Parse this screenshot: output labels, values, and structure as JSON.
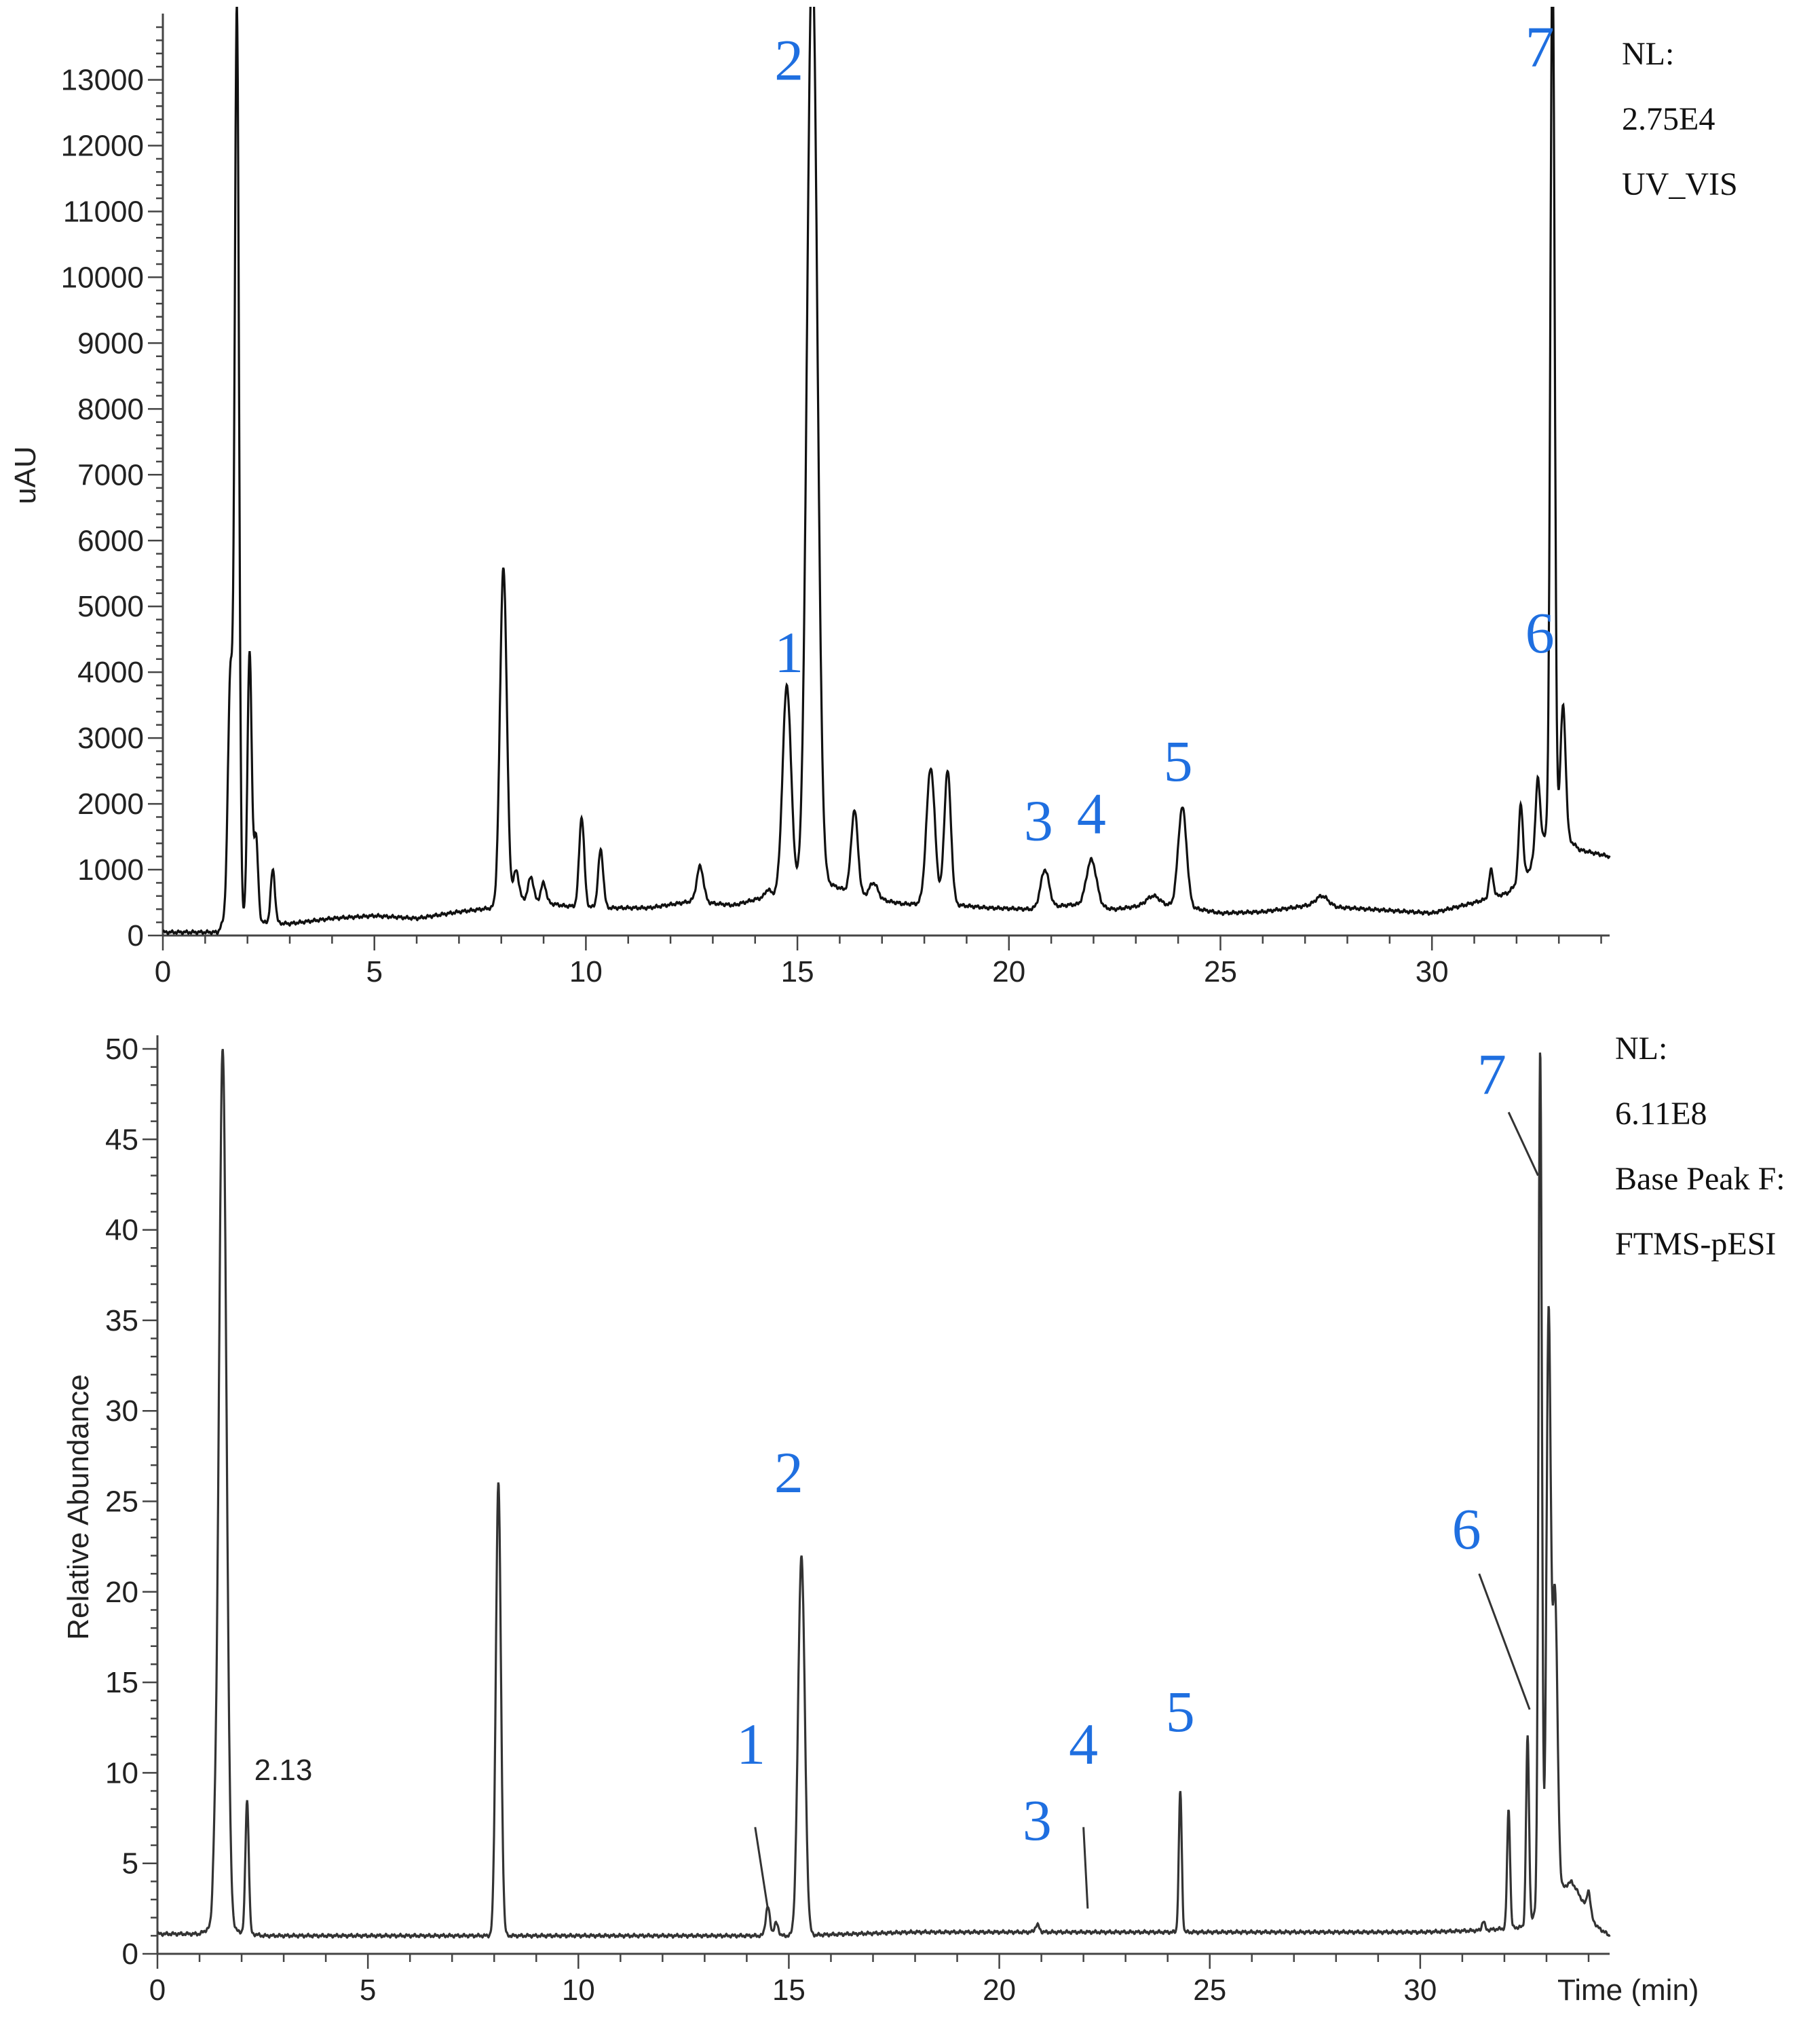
{
  "chart_data": [
    {
      "type": "line",
      "title": "",
      "xlabel": "",
      "ylabel": "uAU",
      "xlim": [
        0,
        34.2
      ],
      "ylim": [
        0,
        13800
      ],
      "xticks": [
        0,
        5,
        10,
        15,
        20,
        25,
        30
      ],
      "yticks": [
        0,
        1000,
        2000,
        3000,
        4000,
        5000,
        6000,
        7000,
        8000,
        9000,
        10000,
        11000,
        12000,
        13000
      ],
      "grid": false,
      "info_lines": [
        "NL:",
        "2.75E4",
        "UV_VIS"
      ],
      "baseline": [
        [
          0,
          50
        ],
        [
          1.3,
          50
        ],
        [
          1.5,
          300
        ],
        [
          2.3,
          200
        ],
        [
          3,
          180
        ],
        [
          4,
          260
        ],
        [
          5,
          300
        ],
        [
          6,
          260
        ],
        [
          7,
          360
        ],
        [
          7.8,
          420
        ],
        [
          8.5,
          560
        ],
        [
          9.5,
          450
        ],
        [
          10.5,
          420
        ],
        [
          11.5,
          420
        ],
        [
          12.5,
          520
        ],
        [
          13.5,
          460
        ],
        [
          14.3,
          600
        ],
        [
          15.6,
          820
        ],
        [
          16.5,
          600
        ],
        [
          17.5,
          480
        ],
        [
          18.5,
          480
        ],
        [
          19.5,
          420
        ],
        [
          20.5,
          400
        ],
        [
          21.5,
          470
        ],
        [
          22.5,
          400
        ],
        [
          23.5,
          480
        ],
        [
          24.5,
          400
        ],
        [
          25,
          340
        ],
        [
          26,
          360
        ],
        [
          27,
          450
        ],
        [
          28,
          420
        ],
        [
          29,
          380
        ],
        [
          30,
          340
        ],
        [
          31,
          500
        ],
        [
          31.8,
          650
        ],
        [
          32.3,
          1000
        ],
        [
          32.6,
          1500
        ],
        [
          33,
          1600
        ],
        [
          33.5,
          1300
        ],
        [
          34.2,
          1200
        ]
      ],
      "peaks": [
        {
          "x": 1.6,
          "y": 4000,
          "w": 0.06
        },
        {
          "x": 1.75,
          "y": 14000,
          "w": 0.05
        },
        {
          "x": 2.05,
          "y": 4300,
          "w": 0.05
        },
        {
          "x": 2.2,
          "y": 1500,
          "w": 0.05
        },
        {
          "x": 2.6,
          "y": 1000,
          "w": 0.05
        },
        {
          "x": 8.05,
          "y": 5600,
          "w": 0.08
        },
        {
          "x": 8.35,
          "y": 1000,
          "w": 0.06
        },
        {
          "x": 8.7,
          "y": 900,
          "w": 0.06
        },
        {
          "x": 9.0,
          "y": 800,
          "w": 0.06
        },
        {
          "x": 9.9,
          "y": 1800,
          "w": 0.06
        },
        {
          "x": 10.35,
          "y": 1300,
          "w": 0.06
        },
        {
          "x": 12.7,
          "y": 1050,
          "w": 0.08
        },
        {
          "x": 14.3,
          "y": 700,
          "w": 0.06
        },
        {
          "x": 14.75,
          "y": 3800,
          "w": 0.1
        },
        {
          "x": 15.35,
          "y": 15000,
          "w": 0.12
        },
        {
          "x": 16.35,
          "y": 1900,
          "w": 0.08
        },
        {
          "x": 16.8,
          "y": 800,
          "w": 0.1
        },
        {
          "x": 18.15,
          "y": 2550,
          "w": 0.1
        },
        {
          "x": 18.55,
          "y": 2500,
          "w": 0.08
        },
        {
          "x": 20.85,
          "y": 1000,
          "w": 0.1
        },
        {
          "x": 21.95,
          "y": 1150,
          "w": 0.12
        },
        {
          "x": 23.4,
          "y": 600,
          "w": 0.15
        },
        {
          "x": 24.1,
          "y": 1950,
          "w": 0.1
        },
        {
          "x": 27.4,
          "y": 600,
          "w": 0.15
        },
        {
          "x": 31.4,
          "y": 1000,
          "w": 0.05
        },
        {
          "x": 32.1,
          "y": 2000,
          "w": 0.05
        },
        {
          "x": 32.5,
          "y": 2400,
          "w": 0.05
        },
        {
          "x": 32.85,
          "y": 15000,
          "w": 0.05
        },
        {
          "x": 33.1,
          "y": 3500,
          "w": 0.06
        }
      ],
      "annotations": [
        {
          "text": "1",
          "x": 14.8,
          "y": 4000
        },
        {
          "text": "2",
          "x": 14.8,
          "y": 13000
        },
        {
          "text": "3",
          "x": 20.7,
          "y": 1450
        },
        {
          "text": "4",
          "x": 21.95,
          "y": 1550
        },
        {
          "text": "5",
          "x": 24.0,
          "y": 2350
        },
        {
          "text": "6",
          "x": 32.55,
          "y": 4300
        },
        {
          "text": "7",
          "x": 32.55,
          "y": 13200
        }
      ]
    },
    {
      "type": "line",
      "title": "",
      "xlabel": "Time (min)",
      "ylabel": "Relative Abundance",
      "xlim": [
        0,
        34.5
      ],
      "ylim": [
        0,
        50
      ],
      "xticks": [
        0,
        5,
        10,
        15,
        20,
        25,
        30
      ],
      "yticks": [
        0,
        5,
        10,
        15,
        20,
        25,
        30,
        35,
        40,
        45,
        50
      ],
      "grid": false,
      "info_lines": [
        "NL:",
        "6.11E8",
        "Base Peak F:",
        "FTMS-pESI"
      ],
      "peak_time_label": "2.13",
      "baseline": [
        [
          0,
          1.1
        ],
        [
          1,
          1.1
        ],
        [
          1.3,
          1.5
        ],
        [
          2.5,
          1.0
        ],
        [
          5,
          1.0
        ],
        [
          8,
          1.0
        ],
        [
          10,
          1.0
        ],
        [
          14,
          1.0
        ],
        [
          15,
          1.0
        ],
        [
          18,
          1.2
        ],
        [
          20,
          1.2
        ],
        [
          22,
          1.2
        ],
        [
          25,
          1.2
        ],
        [
          28,
          1.2
        ],
        [
          30,
          1.2
        ],
        [
          31.5,
          1.3
        ],
        [
          32.5,
          1.5
        ],
        [
          33,
          3
        ],
        [
          33.6,
          4
        ],
        [
          34.2,
          1.5
        ],
        [
          34.5,
          1.0
        ]
      ],
      "peaks": [
        {
          "x": 1.35,
          "y": 3.5,
          "w": 0.04
        },
        {
          "x": 1.55,
          "y": 50,
          "w": 0.09
        },
        {
          "x": 2.13,
          "y": 8.5,
          "w": 0.04
        },
        {
          "x": 8.1,
          "y": 26,
          "w": 0.06
        },
        {
          "x": 14.5,
          "y": 2.6,
          "w": 0.05
        },
        {
          "x": 14.7,
          "y": 1.7,
          "w": 0.05
        },
        {
          "x": 15.3,
          "y": 22,
          "w": 0.08
        },
        {
          "x": 20.9,
          "y": 1.6,
          "w": 0.05
        },
        {
          "x": 22.1,
          "y": 0.7,
          "w": 0.05
        },
        {
          "x": 23.6,
          "y": 1.0,
          "w": 0.05
        },
        {
          "x": 24.3,
          "y": 9.0,
          "w": 0.035
        },
        {
          "x": 31.5,
          "y": 1.8,
          "w": 0.035
        },
        {
          "x": 32.1,
          "y": 8.0,
          "w": 0.035
        },
        {
          "x": 32.55,
          "y": 12.0,
          "w": 0.035
        },
        {
          "x": 32.85,
          "y": 50,
          "w": 0.04
        },
        {
          "x": 33.05,
          "y": 35,
          "w": 0.05
        },
        {
          "x": 33.2,
          "y": 20,
          "w": 0.06
        },
        {
          "x": 34.0,
          "y": 3.5,
          "w": 0.04
        }
      ],
      "annotations": [
        {
          "text": "1",
          "x": 14.1,
          "y": 10.5,
          "leader": [
            [
              14.2,
              7.0
            ],
            [
              14.5,
              2.5
            ]
          ]
        },
        {
          "text": "2",
          "x": 15.0,
          "y": 25.5
        },
        {
          "text": "3",
          "x": 20.9,
          "y": 6.3
        },
        {
          "text": "4",
          "x": 22.0,
          "y": 10.5,
          "leader": [
            [
              22.0,
              7.0
            ],
            [
              22.1,
              2.5
            ]
          ]
        },
        {
          "text": "5",
          "x": 24.3,
          "y": 12.3
        },
        {
          "text": "6",
          "x": 31.1,
          "y": 22.4,
          "leader": [
            [
              31.4,
              21.0
            ],
            [
              32.6,
              13.5
            ]
          ]
        },
        {
          "text": "7",
          "x": 31.7,
          "y": 47.5,
          "leader": [
            [
              32.1,
              46.5
            ],
            [
              32.8,
              43.0
            ]
          ]
        }
      ]
    }
  ]
}
